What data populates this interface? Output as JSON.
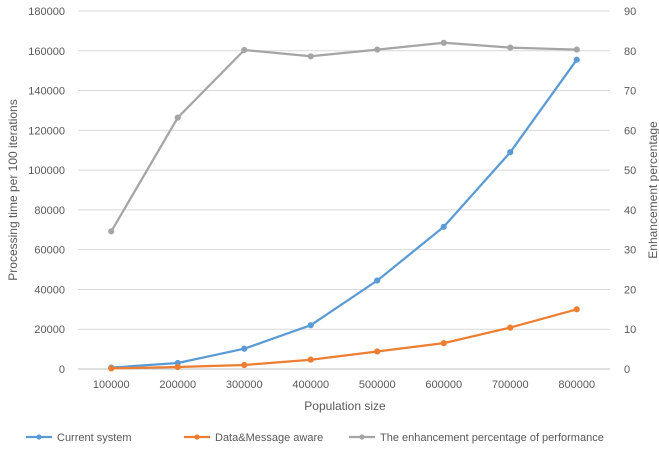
{
  "chart_data": {
    "type": "line",
    "categories": [
      "100000",
      "200000",
      "300000",
      "400000",
      "500000",
      "600000",
      "700000",
      "800000"
    ],
    "series": [
      {
        "name": "Current system",
        "axis": "left",
        "color": "#5B9BD5",
        "values": [
          700,
          3000,
          10200,
          22000,
          44500,
          71500,
          109000,
          155500
        ]
      },
      {
        "name": "Data&Message aware",
        "axis": "left",
        "color": "#ED7D31",
        "values": [
          300,
          1000,
          2000,
          4700,
          8800,
          13000,
          20800,
          30000
        ]
      },
      {
        "name": "The enhancement percentage of performance",
        "axis": "right",
        "color": "#A5A5A5",
        "values": [
          34.6,
          63.2,
          80.2,
          78.6,
          80.3,
          82.0,
          80.8,
          80.3
        ]
      }
    ],
    "xlabel": "Population size",
    "ylabel": "Processing time per 100 iterations",
    "y2label": "Enhancement percentage",
    "ylim": [
      0,
      180000
    ],
    "y2lim": [
      0,
      90
    ],
    "yticks": [
      "0",
      "20000",
      "40000",
      "60000",
      "80000",
      "100000",
      "120000",
      "140000",
      "160000",
      "180000"
    ],
    "y2ticks": [
      "0",
      "10",
      "20",
      "30",
      "40",
      "50",
      "60",
      "70",
      "80",
      "90"
    ],
    "grid": "horizontal",
    "legend": "bottom"
  }
}
